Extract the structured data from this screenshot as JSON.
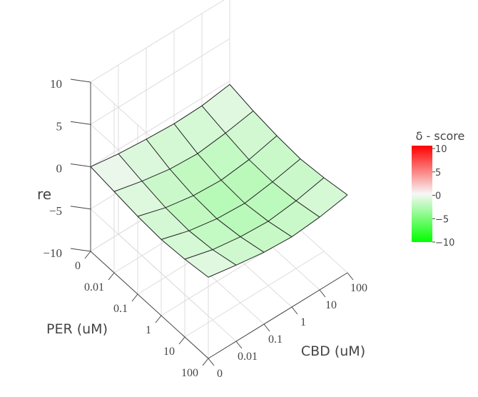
{
  "chart_data": {
    "type": "surface",
    "x": {
      "label": "CBD (uM)",
      "tick_labels": [
        "0",
        "0.01",
        "0.1",
        "1",
        "10",
        "100"
      ]
    },
    "y": {
      "label": "PER (uM)",
      "tick_labels": [
        "0",
        "0.01",
        "0.1",
        "1",
        "10",
        "100"
      ]
    },
    "z": {
      "label": "re",
      "range": [
        -10,
        10
      ],
      "tick_labels": [
        "10",
        "5",
        "0",
        "−5",
        "−10"
      ]
    },
    "z_values": [
      [
        0.0,
        -0.5,
        -0.8,
        -1.0,
        -0.9,
        -0.4
      ],
      [
        -0.4,
        -1.2,
        -1.8,
        -2.0,
        -1.6,
        -1.0
      ],
      [
        -0.8,
        -1.8,
        -2.4,
        -2.6,
        -2.2,
        -1.4
      ],
      [
        -1.0,
        -2.0,
        -2.6,
        -2.8,
        -2.3,
        -1.6
      ],
      [
        -0.8,
        -1.7,
        -2.2,
        -2.4,
        -2.0,
        -1.3
      ],
      [
        -0.4,
        -1.0,
        -1.5,
        -1.7,
        -1.4,
        -0.8
      ]
    ],
    "colorbar": {
      "title": "δ - score",
      "range": [
        -10,
        10
      ],
      "tick_labels": [
        "10",
        "5",
        "0",
        "−5",
        "−10"
      ],
      "colors": {
        "high": "#ff0000",
        "mid": "#f7f7f7",
        "low": "#00ff00"
      }
    },
    "grid": true
  }
}
